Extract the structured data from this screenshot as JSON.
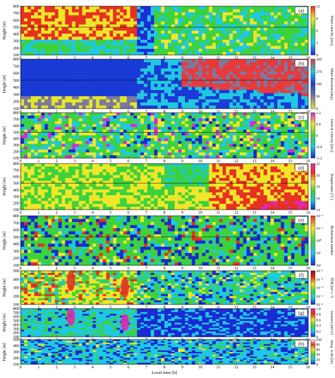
{
  "chart_data": {
    "type": "heatmap",
    "xlabel": "Local time [h]",
    "xlim": [
      0,
      16
    ],
    "xticks": [
      "0",
      "1",
      "2",
      "3",
      "4",
      "5",
      "6",
      "7",
      "8",
      "9",
      "10",
      "11",
      "12",
      "13",
      "14",
      "15",
      "16"
    ],
    "transition_hour": 6.5,
    "panels": [
      {
        "label": "(a)",
        "ylabel": "Height [m]",
        "ylim": [
          100,
          800
        ],
        "yticks": [
          "100",
          "200",
          "300",
          "400",
          "500",
          "600",
          "700",
          "800"
        ],
        "reference_height": 500,
        "colorbar_label": "Wind velocity [m/s]",
        "colorbar_ticks": [
          "12",
          "9",
          "6",
          "3",
          "0"
        ],
        "colors": [
          "#1f2bd6",
          "#1ec8e6",
          "#3cd23c",
          "#f0e628",
          "#e83020"
        ]
      },
      {
        "label": "(b)",
        "ylabel": "Height [m]",
        "ylim": [
          100,
          800
        ],
        "yticks": [
          "100",
          "200",
          "300",
          "400",
          "500",
          "600",
          "700",
          "800"
        ],
        "reference_height": 500,
        "colorbar_label": "Wind direction [deg]",
        "colorbar_ticks": [
          "360",
          "270",
          "180",
          "90",
          "0"
        ],
        "colors": [
          "#e6e628",
          "#7a7aa0",
          "#1a3ad6",
          "#20c8e0",
          "#e83a3a"
        ]
      },
      {
        "label": "(c)",
        "ylabel": "Height [m]",
        "ylim": [
          100,
          800
        ],
        "yticks": [
          "100",
          "200",
          "300",
          "400",
          "500",
          "600",
          "700",
          "800"
        ],
        "reference_height": 500,
        "colorbar_label": "Vertical velocity [m/s]",
        "colorbar_ticks": [
          "1.2",
          "0.6",
          "0",
          "-0.6",
          "-1.2"
        ],
        "colors": [
          "#1a2ad2",
          "#1ec8e6",
          "#3cd23c",
          "#f0e628",
          "#d828d8"
        ]
      },
      {
        "label": "(d)",
        "ylabel": "Height [m]",
        "ylim": [
          100,
          800
        ],
        "yticks": [
          "100",
          "200",
          "300",
          "400",
          "500",
          "600",
          "700",
          "800"
        ],
        "reference_height": 500,
        "colorbar_label": "Temperature [°C]",
        "colorbar_ticks": [
          "22",
          "20",
          "18",
          "16",
          "14"
        ],
        "colors": [
          "#1a2ad2",
          "#1ec8c8",
          "#3cd23c",
          "#f0e628",
          "#e83020",
          "#e028b4"
        ]
      },
      {
        "label": "(e)",
        "ylabel": "Height [m]",
        "ylim": [
          100,
          800
        ],
        "yticks": [
          "100",
          "200",
          "300",
          "400",
          "500",
          "600",
          "700",
          "800"
        ],
        "reference_height": 500,
        "colorbar_label": "Richardson number",
        "colorbar_ticks": [
          "10⁻²",
          "10⁻¹",
          "10⁰",
          "10¹",
          "10²"
        ],
        "colors": [
          "#1a2ad2",
          "#1ec8e6",
          "#3cd23c",
          "#f0e628",
          "#e83020"
        ]
      },
      {
        "label": "(f)",
        "ylabel": "Height [m]",
        "ylim": [
          100,
          500
        ],
        "yticks": [
          "100",
          "200",
          "300",
          "400",
          "500"
        ],
        "colorbar_label": "TDR [m² s⁻³]",
        "colorbar_ticks": [
          "10⁻²",
          "10⁻³",
          "10⁻⁴",
          "10⁻⁵",
          "10⁻⁶"
        ],
        "colors": [
          "#1a2ad2",
          "#1ec8e6",
          "#3cd23c",
          "#f0e628",
          "#e83020",
          "#8a1010"
        ]
      },
      {
        "label": "(g)",
        "ylabel": "Height [m]",
        "ylim": [
          100,
          800
        ],
        "yticks": [
          "100",
          "200",
          "300",
          "400",
          "500",
          "600",
          "700",
          "800"
        ],
        "colorbar_label": "Variance [m²/s²]",
        "colorbar_ticks": [
          "1.0",
          "0.8",
          "0.6",
          "0.4",
          "0.2",
          "0"
        ],
        "colors": [
          "#1a2ad2",
          "#1ec8e6",
          "#3cd23c",
          "#f0e628",
          "#e83020",
          "#e028b4"
        ]
      },
      {
        "label": "(h)",
        "ylabel": "Height [m]",
        "ylim": [
          100,
          500
        ],
        "yticks": [
          "100",
          "200",
          "300",
          "400",
          "500"
        ],
        "colorbar_label": "Integ. scale [m]",
        "colorbar_ticks": [
          "100",
          "80",
          "60",
          "40",
          "20",
          "0"
        ],
        "colors": [
          "#1a2ad2",
          "#1ec8e6",
          "#3cd23c",
          "#f0e628",
          "#e83020",
          "#ffffff"
        ]
      }
    ]
  }
}
